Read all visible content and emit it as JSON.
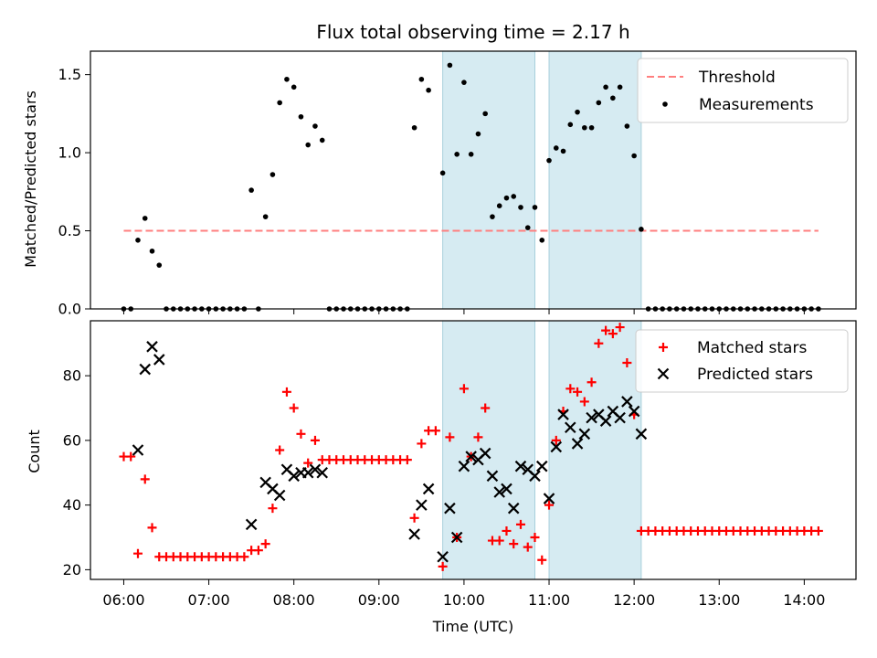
{
  "chart_data": [
    {
      "type": "scatter",
      "title": "Flux total observing time = 2.17 h",
      "ylabel": "Matched/Predicted stars",
      "ylim": [
        0,
        1.65
      ],
      "yticks": [
        "0.0",
        "0.5",
        "1.0",
        "1.5"
      ],
      "legend": "top-right",
      "threshold": {
        "name": "Threshold",
        "value": 0.5,
        "x_range": [
          "06:00",
          "14:10"
        ],
        "color": "#ff7f7f"
      },
      "shaded_regions": [
        [
          "09:45",
          "10:50"
        ],
        [
          "11:00",
          "12:05"
        ]
      ],
      "series": [
        {
          "name": "Measurements",
          "color": "#000000",
          "points": [
            [
              "06:00",
              0
            ],
            [
              "06:05",
              0
            ],
            [
              "06:10",
              0.44
            ],
            [
              "06:15",
              0.58
            ],
            [
              "06:20",
              0.37
            ],
            [
              "06:25",
              0.28
            ],
            [
              "06:30",
              0
            ],
            [
              "06:35",
              0
            ],
            [
              "06:40",
              0
            ],
            [
              "06:45",
              0
            ],
            [
              "06:50",
              0
            ],
            [
              "06:55",
              0
            ],
            [
              "07:00",
              0
            ],
            [
              "07:05",
              0
            ],
            [
              "07:10",
              0
            ],
            [
              "07:15",
              0
            ],
            [
              "07:20",
              0
            ],
            [
              "07:25",
              0
            ],
            [
              "07:30",
              0.76
            ],
            [
              "07:35",
              0
            ],
            [
              "07:40",
              0.59
            ],
            [
              "07:45",
              0.86
            ],
            [
              "07:50",
              1.32
            ],
            [
              "07:55",
              1.47
            ],
            [
              "08:00",
              1.42
            ],
            [
              "08:05",
              1.23
            ],
            [
              "08:10",
              1.05
            ],
            [
              "08:15",
              1.17
            ],
            [
              "08:20",
              1.08
            ],
            [
              "08:25",
              0
            ],
            [
              "08:30",
              0
            ],
            [
              "08:35",
              0
            ],
            [
              "08:40",
              0
            ],
            [
              "08:45",
              0
            ],
            [
              "08:50",
              0
            ],
            [
              "08:55",
              0
            ],
            [
              "09:00",
              0
            ],
            [
              "09:05",
              0
            ],
            [
              "09:10",
              0
            ],
            [
              "09:15",
              0
            ],
            [
              "09:20",
              0
            ],
            [
              "09:25",
              1.16
            ],
            [
              "09:30",
              1.47
            ],
            [
              "09:35",
              1.4
            ],
            [
              "09:45",
              0.87
            ],
            [
              "09:50",
              1.56
            ],
            [
              "09:55",
              0.99
            ],
            [
              "10:00",
              1.45
            ],
            [
              "10:05",
              0.99
            ],
            [
              "10:10",
              1.12
            ],
            [
              "10:15",
              1.25
            ],
            [
              "10:20",
              0.59
            ],
            [
              "10:25",
              0.66
            ],
            [
              "10:30",
              0.71
            ],
            [
              "10:35",
              0.72
            ],
            [
              "10:40",
              0.65
            ],
            [
              "10:45",
              0.52
            ],
            [
              "10:50",
              0.65
            ],
            [
              "10:55",
              0.44
            ],
            [
              "11:00",
              0.95
            ],
            [
              "11:05",
              1.03
            ],
            [
              "11:10",
              1.01
            ],
            [
              "11:15",
              1.18
            ],
            [
              "11:20",
              1.26
            ],
            [
              "11:25",
              1.16
            ],
            [
              "11:30",
              1.16
            ],
            [
              "11:35",
              1.32
            ],
            [
              "11:40",
              1.42
            ],
            [
              "11:45",
              1.35
            ],
            [
              "11:50",
              1.42
            ],
            [
              "11:55",
              1.17
            ],
            [
              "12:00",
              0.98
            ],
            [
              "12:05",
              0.51
            ],
            [
              "12:10",
              0
            ],
            [
              "12:15",
              0
            ],
            [
              "12:20",
              0
            ],
            [
              "12:25",
              0
            ],
            [
              "12:30",
              0
            ],
            [
              "12:35",
              0
            ],
            [
              "12:40",
              0
            ],
            [
              "12:45",
              0
            ],
            [
              "12:50",
              0
            ],
            [
              "12:55",
              0
            ],
            [
              "13:00",
              0
            ],
            [
              "13:05",
              0
            ],
            [
              "13:10",
              0
            ],
            [
              "13:15",
              0
            ],
            [
              "13:20",
              0
            ],
            [
              "13:25",
              0
            ],
            [
              "13:30",
              0
            ],
            [
              "13:35",
              0
            ],
            [
              "13:40",
              0
            ],
            [
              "13:45",
              0
            ],
            [
              "13:50",
              0
            ],
            [
              "13:55",
              0
            ],
            [
              "14:00",
              0
            ],
            [
              "14:05",
              0
            ],
            [
              "14:10",
              0
            ]
          ]
        }
      ]
    },
    {
      "type": "scatter",
      "xlabel": "Time (UTC)",
      "ylabel": "Count",
      "ylim": [
        17,
        97
      ],
      "yticks": [
        "20",
        "40",
        "60",
        "80"
      ],
      "xticks": [
        "06:00",
        "07:00",
        "08:00",
        "09:00",
        "10:00",
        "11:00",
        "12:00",
        "13:00",
        "14:00"
      ],
      "legend": "top-right",
      "shaded_regions": [
        [
          "09:45",
          "10:50"
        ],
        [
          "11:00",
          "12:05"
        ]
      ],
      "series": [
        {
          "name": "Matched stars",
          "color": "#ff0000",
          "marker": "plus",
          "points": [
            [
              "06:00",
              55
            ],
            [
              "06:05",
              55
            ],
            [
              "06:10",
              25
            ],
            [
              "06:15",
              48
            ],
            [
              "06:20",
              33
            ],
            [
              "06:25",
              24
            ],
            [
              "06:30",
              24
            ],
            [
              "06:35",
              24
            ],
            [
              "06:40",
              24
            ],
            [
              "06:45",
              24
            ],
            [
              "06:50",
              24
            ],
            [
              "06:55",
              24
            ],
            [
              "07:00",
              24
            ],
            [
              "07:05",
              24
            ],
            [
              "07:10",
              24
            ],
            [
              "07:15",
              24
            ],
            [
              "07:20",
              24
            ],
            [
              "07:25",
              24
            ],
            [
              "07:30",
              26
            ],
            [
              "07:35",
              26
            ],
            [
              "07:40",
              28
            ],
            [
              "07:45",
              39
            ],
            [
              "07:50",
              57
            ],
            [
              "07:55",
              75
            ],
            [
              "08:00",
              70
            ],
            [
              "08:05",
              62
            ],
            [
              "08:10",
              53
            ],
            [
              "08:15",
              60
            ],
            [
              "08:20",
              54
            ],
            [
              "08:25",
              54
            ],
            [
              "08:30",
              54
            ],
            [
              "08:35",
              54
            ],
            [
              "08:40",
              54
            ],
            [
              "08:45",
              54
            ],
            [
              "08:50",
              54
            ],
            [
              "08:55",
              54
            ],
            [
              "09:00",
              54
            ],
            [
              "09:05",
              54
            ],
            [
              "09:10",
              54
            ],
            [
              "09:15",
              54
            ],
            [
              "09:20",
              54
            ],
            [
              "09:25",
              36
            ],
            [
              "09:30",
              59
            ],
            [
              "09:35",
              63
            ],
            [
              "09:40",
              63
            ],
            [
              "09:45",
              21
            ],
            [
              "09:50",
              61
            ],
            [
              "09:55",
              30
            ],
            [
              "10:00",
              76
            ],
            [
              "10:05",
              55
            ],
            [
              "10:10",
              61
            ],
            [
              "10:15",
              70
            ],
            [
              "10:20",
              29
            ],
            [
              "10:25",
              29
            ],
            [
              "10:30",
              32
            ],
            [
              "10:35",
              28
            ],
            [
              "10:40",
              34
            ],
            [
              "10:45",
              27
            ],
            [
              "10:50",
              30
            ],
            [
              "10:55",
              23
            ],
            [
              "11:00",
              40
            ],
            [
              "11:05",
              60
            ],
            [
              "11:10",
              69
            ],
            [
              "11:15",
              76
            ],
            [
              "11:20",
              75
            ],
            [
              "11:25",
              72
            ],
            [
              "11:30",
              78
            ],
            [
              "11:35",
              90
            ],
            [
              "11:40",
              94
            ],
            [
              "11:45",
              93
            ],
            [
              "11:50",
              95
            ],
            [
              "11:55",
              84
            ],
            [
              "12:00",
              68
            ],
            [
              "12:05",
              32
            ],
            [
              "12:10",
              32
            ],
            [
              "12:15",
              32
            ],
            [
              "12:20",
              32
            ],
            [
              "12:25",
              32
            ],
            [
              "12:30",
              32
            ],
            [
              "12:35",
              32
            ],
            [
              "12:40",
              32
            ],
            [
              "12:45",
              32
            ],
            [
              "12:50",
              32
            ],
            [
              "12:55",
              32
            ],
            [
              "13:00",
              32
            ],
            [
              "13:05",
              32
            ],
            [
              "13:10",
              32
            ],
            [
              "13:15",
              32
            ],
            [
              "13:20",
              32
            ],
            [
              "13:25",
              32
            ],
            [
              "13:30",
              32
            ],
            [
              "13:35",
              32
            ],
            [
              "13:40",
              32
            ],
            [
              "13:45",
              32
            ],
            [
              "13:50",
              32
            ],
            [
              "13:55",
              32
            ],
            [
              "14:00",
              32
            ],
            [
              "14:05",
              32
            ],
            [
              "14:10",
              32
            ]
          ]
        },
        {
          "name": "Predicted stars",
          "color": "#000000",
          "marker": "x",
          "points": [
            [
              "06:10",
              57
            ],
            [
              "06:15",
              82
            ],
            [
              "06:20",
              89
            ],
            [
              "06:25",
              85
            ],
            [
              "07:30",
              34
            ],
            [
              "07:40",
              47
            ],
            [
              "07:45",
              45
            ],
            [
              "07:50",
              43
            ],
            [
              "07:55",
              51
            ],
            [
              "08:00",
              49
            ],
            [
              "08:05",
              50
            ],
            [
              "08:10",
              50
            ],
            [
              "08:15",
              51
            ],
            [
              "08:20",
              50
            ],
            [
              "09:25",
              31
            ],
            [
              "09:30",
              40
            ],
            [
              "09:35",
              45
            ],
            [
              "09:45",
              24
            ],
            [
              "09:50",
              39
            ],
            [
              "09:55",
              30
            ],
            [
              "10:00",
              52
            ],
            [
              "10:05",
              55
            ],
            [
              "10:10",
              54
            ],
            [
              "10:15",
              56
            ],
            [
              "10:20",
              49
            ],
            [
              "10:25",
              44
            ],
            [
              "10:30",
              45
            ],
            [
              "10:35",
              39
            ],
            [
              "10:40",
              52
            ],
            [
              "10:45",
              51
            ],
            [
              "10:50",
              49
            ],
            [
              "10:55",
              52
            ],
            [
              "11:00",
              42
            ],
            [
              "11:05",
              58
            ],
            [
              "11:10",
              68
            ],
            [
              "11:15",
              64
            ],
            [
              "11:20",
              59
            ],
            [
              "11:25",
              62
            ],
            [
              "11:30",
              67
            ],
            [
              "11:35",
              68
            ],
            [
              "11:40",
              66
            ],
            [
              "11:45",
              69
            ],
            [
              "11:50",
              67
            ],
            [
              "11:55",
              72
            ],
            [
              "12:00",
              69
            ],
            [
              "12:05",
              62
            ]
          ]
        }
      ]
    }
  ]
}
